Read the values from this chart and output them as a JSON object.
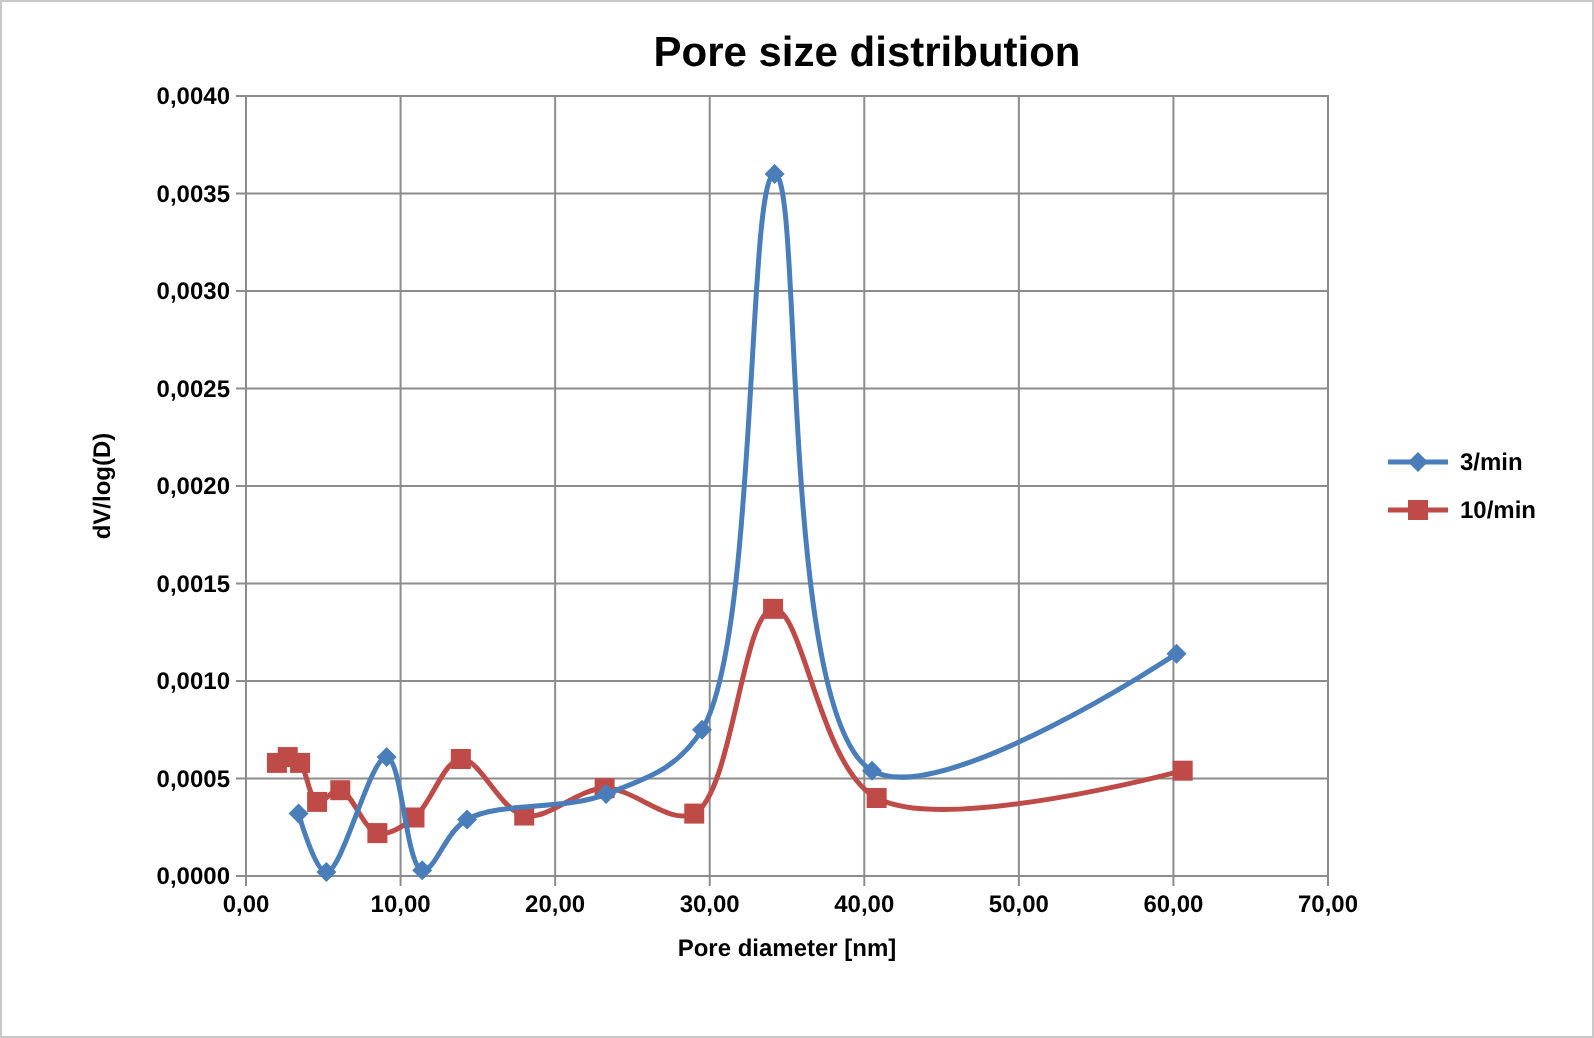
{
  "chart_data": {
    "type": "line",
    "title": "Pore size distribution",
    "xlabel": "Pore diameter [nm]",
    "ylabel": "dV/log(D)",
    "xlim": [
      0,
      70
    ],
    "xticks": [
      {
        "value": 0,
        "label": "0,00"
      },
      {
        "value": 10,
        "label": "10,00"
      },
      {
        "value": 20,
        "label": "20,00"
      },
      {
        "value": 30,
        "label": "30,00"
      },
      {
        "value": 40,
        "label": "40,00"
      },
      {
        "value": 50,
        "label": "50,00"
      },
      {
        "value": 60,
        "label": "60,00"
      },
      {
        "value": 70,
        "label": "70,00"
      }
    ],
    "ylim": [
      0,
      0.004
    ],
    "yticks": [
      {
        "value": 0,
        "label": "0,0000"
      },
      {
        "value": 0.0005,
        "label": "0,0005"
      },
      {
        "value": 0.001,
        "label": "0,0010"
      },
      {
        "value": 0.0015,
        "label": "0,0015"
      },
      {
        "value": 0.002,
        "label": "0,0020"
      },
      {
        "value": 0.0025,
        "label": "0,0025"
      },
      {
        "value": 0.003,
        "label": "0,0030"
      },
      {
        "value": 0.0035,
        "label": "0,0035"
      },
      {
        "value": 0.004,
        "label": "0,0040"
      }
    ],
    "grid": true,
    "legend": "right",
    "series": [
      {
        "name": "3/min",
        "color": "#4a7ebb",
        "marker": "diamond",
        "x": [
          3.4,
          5.2,
          9.1,
          11.4,
          14.3,
          23.3,
          29.5,
          34.2,
          40.5,
          60.2
        ],
        "values": [
          0.00032,
          2e-05,
          0.00061,
          3e-05,
          0.00029,
          0.00042,
          0.00075,
          0.0036,
          0.00054,
          0.00114
        ]
      },
      {
        "name": "10/min",
        "color": "#be4b48",
        "marker": "square",
        "x": [
          2.0,
          2.7,
          3.5,
          4.6,
          6.1,
          8.5,
          10.9,
          13.9,
          18.0,
          23.2,
          29.0,
          34.1,
          40.8,
          60.6
        ],
        "values": [
          0.00058,
          0.00061,
          0.00058,
          0.00038,
          0.00044,
          0.00022,
          0.0003,
          0.0006,
          0.00031,
          0.00045,
          0.00032,
          0.00137,
          0.0004,
          0.00054
        ]
      }
    ]
  }
}
